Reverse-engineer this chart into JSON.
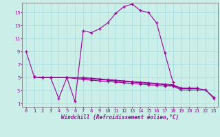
{
  "xlabel": "Windchill (Refroidissement éolien,°C)",
  "background_color": "#cceee8",
  "grid_color": "#aadddd",
  "line_color": "#990099",
  "xlim": [
    -0.5,
    23.5
  ],
  "ylim": [
    0.5,
    16.5
  ],
  "xticks": [
    0,
    1,
    2,
    3,
    4,
    5,
    6,
    7,
    8,
    9,
    10,
    11,
    12,
    13,
    14,
    15,
    16,
    17,
    18,
    19,
    20,
    21,
    22,
    23
  ],
  "yticks": [
    1,
    3,
    5,
    7,
    9,
    11,
    13,
    15
  ],
  "line1_x": [
    0,
    1,
    2,
    3,
    4,
    5,
    6,
    7,
    8,
    9,
    10,
    11,
    12,
    13,
    14,
    15,
    16,
    17,
    18
  ],
  "line1_y": [
    9,
    5.1,
    5.0,
    5.0,
    1.8,
    5.0,
    1.3,
    12.2,
    11.9,
    12.5,
    13.4,
    14.9,
    15.9,
    16.3,
    15.3,
    15.0,
    13.4,
    8.8,
    4.3
  ],
  "line2_x": [
    1,
    2,
    3,
    5,
    7,
    8,
    9,
    10,
    11,
    12,
    13,
    14,
    15,
    16,
    17,
    18,
    19,
    20,
    21,
    22,
    23
  ],
  "line2_y": [
    5.1,
    5.0,
    5.0,
    5.0,
    4.7,
    4.6,
    4.5,
    4.4,
    4.3,
    4.2,
    4.1,
    4.0,
    3.9,
    3.8,
    3.7,
    3.7,
    3.1,
    3.1,
    3.1,
    3.1,
    1.8
  ],
  "line3_x": [
    1,
    2,
    3,
    5,
    7,
    8,
    9,
    10,
    11,
    12,
    13,
    14,
    15,
    16,
    17,
    18,
    19,
    20,
    21,
    22,
    23
  ],
  "line3_y": [
    5.1,
    5.0,
    5.0,
    5.0,
    4.9,
    4.8,
    4.7,
    4.6,
    4.5,
    4.4,
    4.3,
    4.2,
    4.1,
    4.0,
    3.9,
    3.8,
    3.3,
    3.3,
    3.3,
    3.1,
    2.0
  ],
  "line4_x": [
    1,
    2,
    3,
    5,
    7,
    8,
    9,
    10,
    11,
    12,
    13,
    14,
    15,
    16,
    17,
    18,
    19,
    20,
    21
  ],
  "line4_y": [
    5.1,
    5.0,
    5.0,
    5.0,
    5.0,
    4.9,
    4.8,
    4.7,
    4.6,
    4.5,
    4.4,
    4.3,
    4.2,
    4.1,
    4.0,
    3.9,
    3.4,
    3.4,
    3.4
  ]
}
